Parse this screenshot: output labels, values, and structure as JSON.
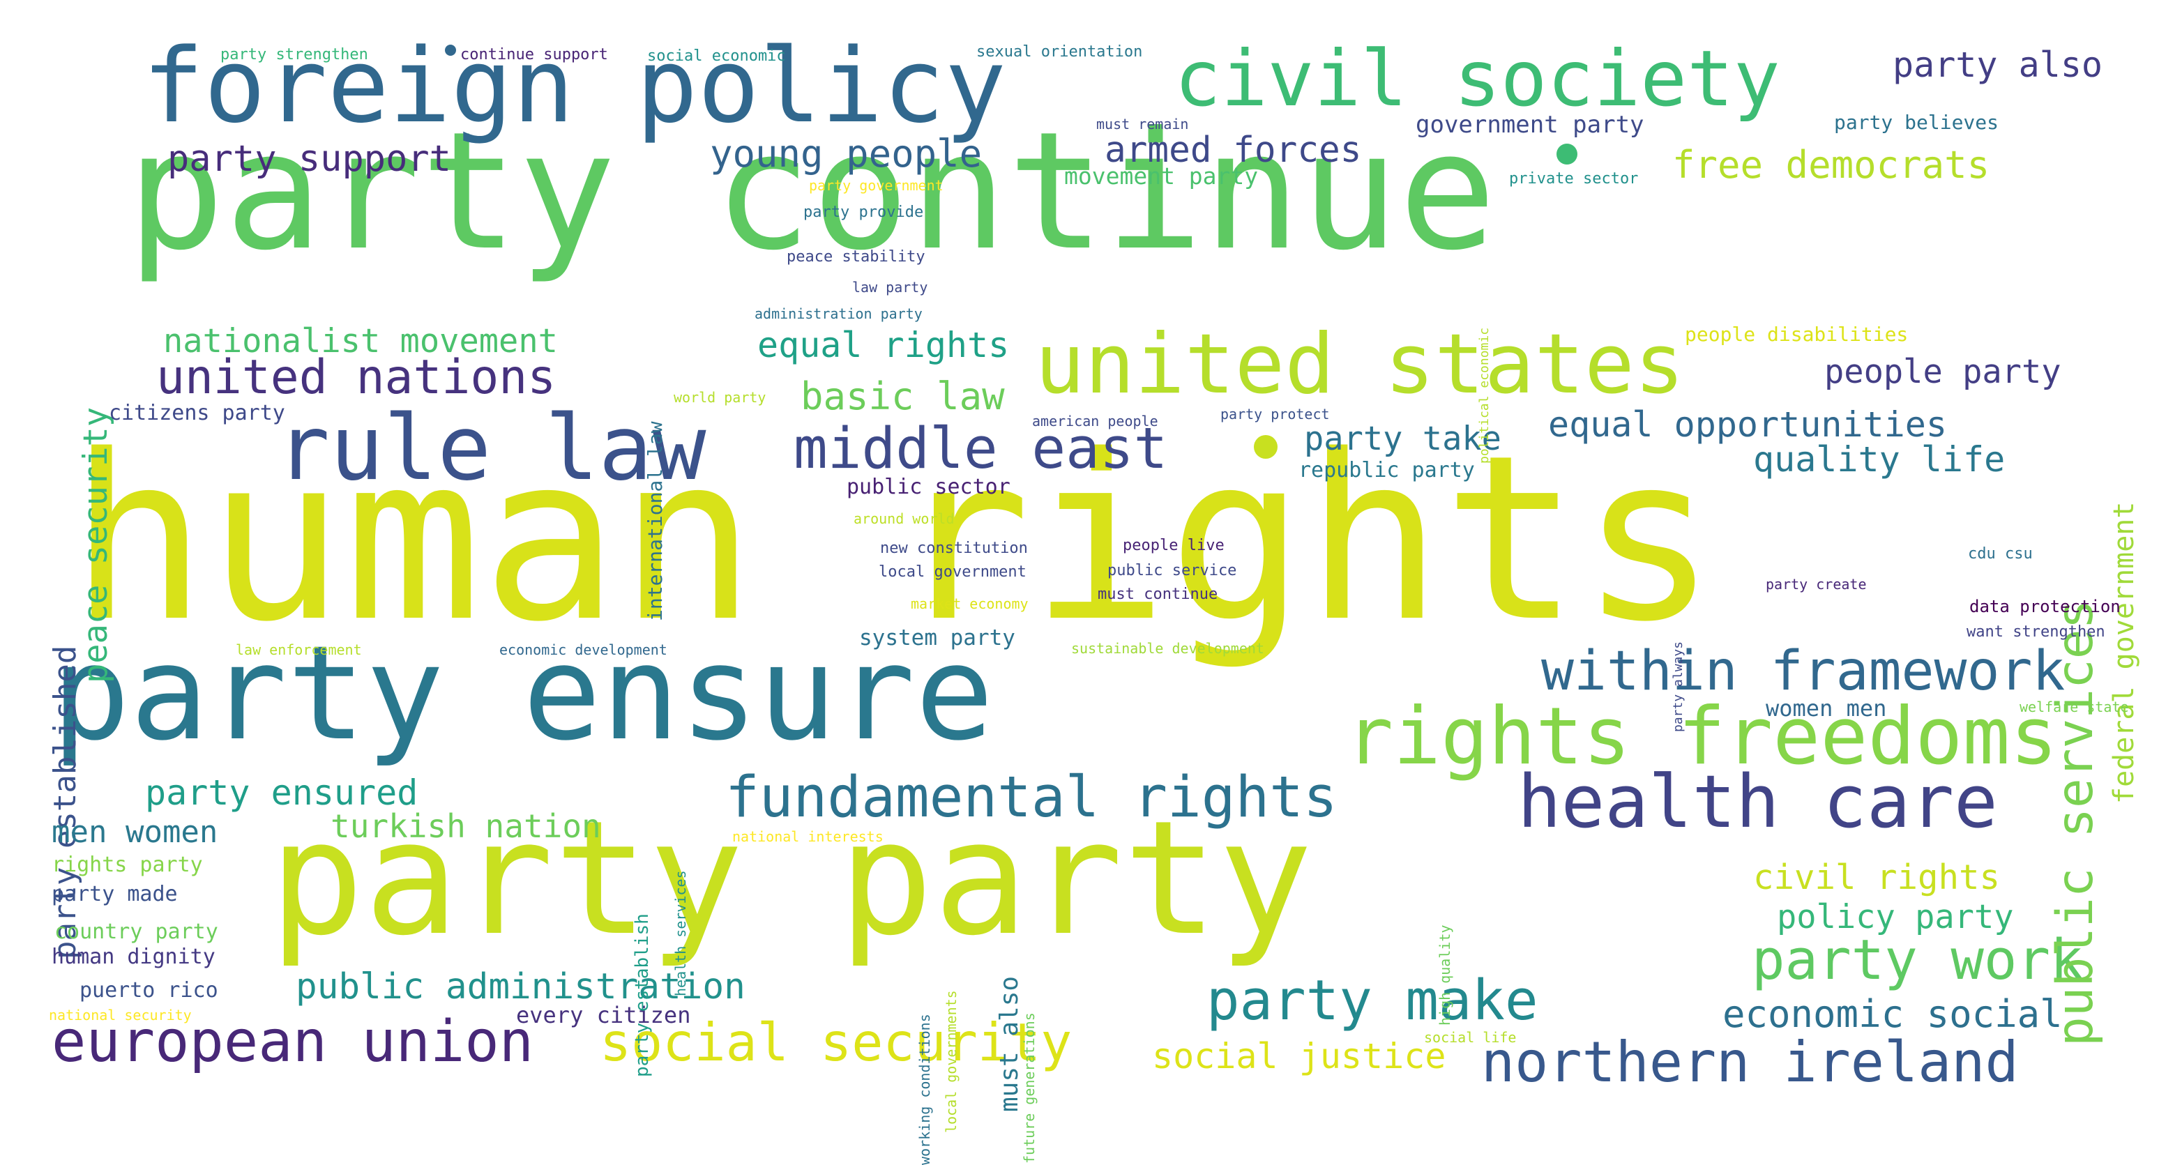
{
  "cloud": {
    "words": [
      {
        "text": "human rights",
        "color": "#d8e219"
      },
      {
        "text": "party continue",
        "color": "#5ec962"
      },
      {
        "text": "party party",
        "color": "#c8e020"
      },
      {
        "text": "party ensure",
        "color": "#2a788e"
      },
      {
        "text": "foreign policy",
        "color": "#31688e"
      },
      {
        "text": "civil society",
        "color": "#3dbc74"
      },
      {
        "text": "united states",
        "color": "#b5de2b"
      },
      {
        "text": "rule law",
        "color": "#3b528b"
      },
      {
        "text": "rights freedoms",
        "color": "#86d549"
      },
      {
        "text": "health care",
        "color": "#414487"
      },
      {
        "text": "fundamental rights",
        "color": "#2c728e"
      },
      {
        "text": "within framework",
        "color": "#31688e"
      },
      {
        "text": "middle east",
        "color": "#3e4a89"
      },
      {
        "text": "european union",
        "color": "#482878"
      },
      {
        "text": "social security",
        "color": "#dde318"
      },
      {
        "text": "northern ireland",
        "color": "#38588c"
      },
      {
        "text": "party make",
        "color": "#23898e"
      },
      {
        "text": "party work",
        "color": "#5ec962"
      },
      {
        "text": "united nations",
        "color": "#46327e"
      },
      {
        "text": "public services",
        "color": "#7ad151"
      },
      {
        "text": "public administration",
        "color": "#21918c"
      },
      {
        "text": "social justice",
        "color": "#dde318"
      },
      {
        "text": "economic social",
        "color": "#2d708e"
      },
      {
        "text": "young people",
        "color": "#33638d"
      },
      {
        "text": "armed forces",
        "color": "#3e4989"
      },
      {
        "text": "party support",
        "color": "#472d7b"
      },
      {
        "text": "free democrats",
        "color": "#b5de2b"
      },
      {
        "text": "party also",
        "color": "#433e85"
      },
      {
        "text": "equal rights",
        "color": "#1fa187"
      },
      {
        "text": "equal opportunities",
        "color": "#31688e"
      },
      {
        "text": "party ensured",
        "color": "#1f9e89"
      },
      {
        "text": "basic law",
        "color": "#6ccd5a"
      },
      {
        "text": "party take",
        "color": "#2c728e"
      },
      {
        "text": "quality life",
        "color": "#2a788e"
      },
      {
        "text": "people party",
        "color": "#433e85"
      },
      {
        "text": "civil rights",
        "color": "#c8e020"
      },
      {
        "text": "policy party",
        "color": "#35b779"
      },
      {
        "text": "nationalist movement",
        "color": "#4ac16d"
      },
      {
        "text": "peace security",
        "color": "#35b779"
      },
      {
        "text": "party established",
        "color": "#3b528b"
      },
      {
        "text": "federal government",
        "color": "#a0da39"
      },
      {
        "text": "turkish nation",
        "color": "#6ccd5a"
      },
      {
        "text": "men women",
        "color": "#2a788e"
      },
      {
        "text": "government party",
        "color": "#3e4a89"
      },
      {
        "text": "movement party",
        "color": "#4ac16d"
      },
      {
        "text": "women men",
        "color": "#31688e"
      },
      {
        "text": "public sector",
        "color": "#482173"
      },
      {
        "text": "system party",
        "color": "#2c728e"
      },
      {
        "text": "must also",
        "color": "#2a788e"
      },
      {
        "text": "every citizen",
        "color": "#46327e"
      },
      {
        "text": "rights party",
        "color": "#86d549"
      },
      {
        "text": "party made",
        "color": "#3b528b"
      },
      {
        "text": "country party",
        "color": "#6ccd5a"
      },
      {
        "text": "human dignity",
        "color": "#443983"
      },
      {
        "text": "puerto rico",
        "color": "#3b528b"
      },
      {
        "text": "citizens party",
        "color": "#3e4989"
      },
      {
        "text": "international law",
        "color": "#2c728e"
      },
      {
        "text": "party establish",
        "color": "#1f9e89"
      },
      {
        "text": "republic party",
        "color": "#2a788e"
      },
      {
        "text": "party believes",
        "color": "#2c728e"
      },
      {
        "text": "people disabilities",
        "color": "#dde318"
      },
      {
        "text": "data protection",
        "color": "#440154"
      },
      {
        "text": "party strengthen",
        "color": "#35b779"
      },
      {
        "text": "continue support",
        "color": "#482475"
      },
      {
        "text": "social economic",
        "color": "#21918c"
      },
      {
        "text": "sexual orientation",
        "color": "#2a788e"
      },
      {
        "text": "must remain",
        "color": "#3e4a89"
      },
      {
        "text": "party government",
        "color": "#fde725"
      },
      {
        "text": "party provide",
        "color": "#2c728e"
      },
      {
        "text": "peace stability",
        "color": "#3e4989"
      },
      {
        "text": "law party",
        "color": "#3e4989"
      },
      {
        "text": "administration party",
        "color": "#2d708e"
      },
      {
        "text": "private sector",
        "color": "#21918c"
      },
      {
        "text": "political economic",
        "color": "#b5de2b"
      },
      {
        "text": "world party",
        "color": "#b5de2b"
      },
      {
        "text": "around world",
        "color": "#bddf26"
      },
      {
        "text": "american people",
        "color": "#3e4a89"
      },
      {
        "text": "party protect",
        "color": "#3b528b"
      },
      {
        "text": "new constitution",
        "color": "#3e4a89"
      },
      {
        "text": "local government",
        "color": "#3e4a89"
      },
      {
        "text": "people live",
        "color": "#482475"
      },
      {
        "text": "public service",
        "color": "#3e4989"
      },
      {
        "text": "must continue",
        "color": "#46327e"
      },
      {
        "text": "market economy",
        "color": "#dde318"
      },
      {
        "text": "law enforcement",
        "color": "#b5de2b"
      },
      {
        "text": "economic development",
        "color": "#31688e"
      },
      {
        "text": "sustainable development",
        "color": "#a0da39"
      },
      {
        "text": "party always",
        "color": "#3e4a89"
      },
      {
        "text": "party create",
        "color": "#482878"
      },
      {
        "text": "cdu csu",
        "color": "#2d708e"
      },
      {
        "text": "want strengthen",
        "color": "#414487"
      },
      {
        "text": "welfare state",
        "color": "#7ad151"
      },
      {
        "text": "national interests",
        "color": "#fde725"
      },
      {
        "text": "health services",
        "color": "#21918c"
      },
      {
        "text": "working conditions",
        "color": "#2c728e"
      },
      {
        "text": "local governments",
        "color": "#b5de2b"
      },
      {
        "text": "future generations",
        "color": "#6ccd5a"
      },
      {
        "text": "high quality",
        "color": "#6ccd5a"
      },
      {
        "text": "social life",
        "color": "#b5de2b"
      },
      {
        "text": "national security",
        "color": "#fde725"
      }
    ]
  }
}
